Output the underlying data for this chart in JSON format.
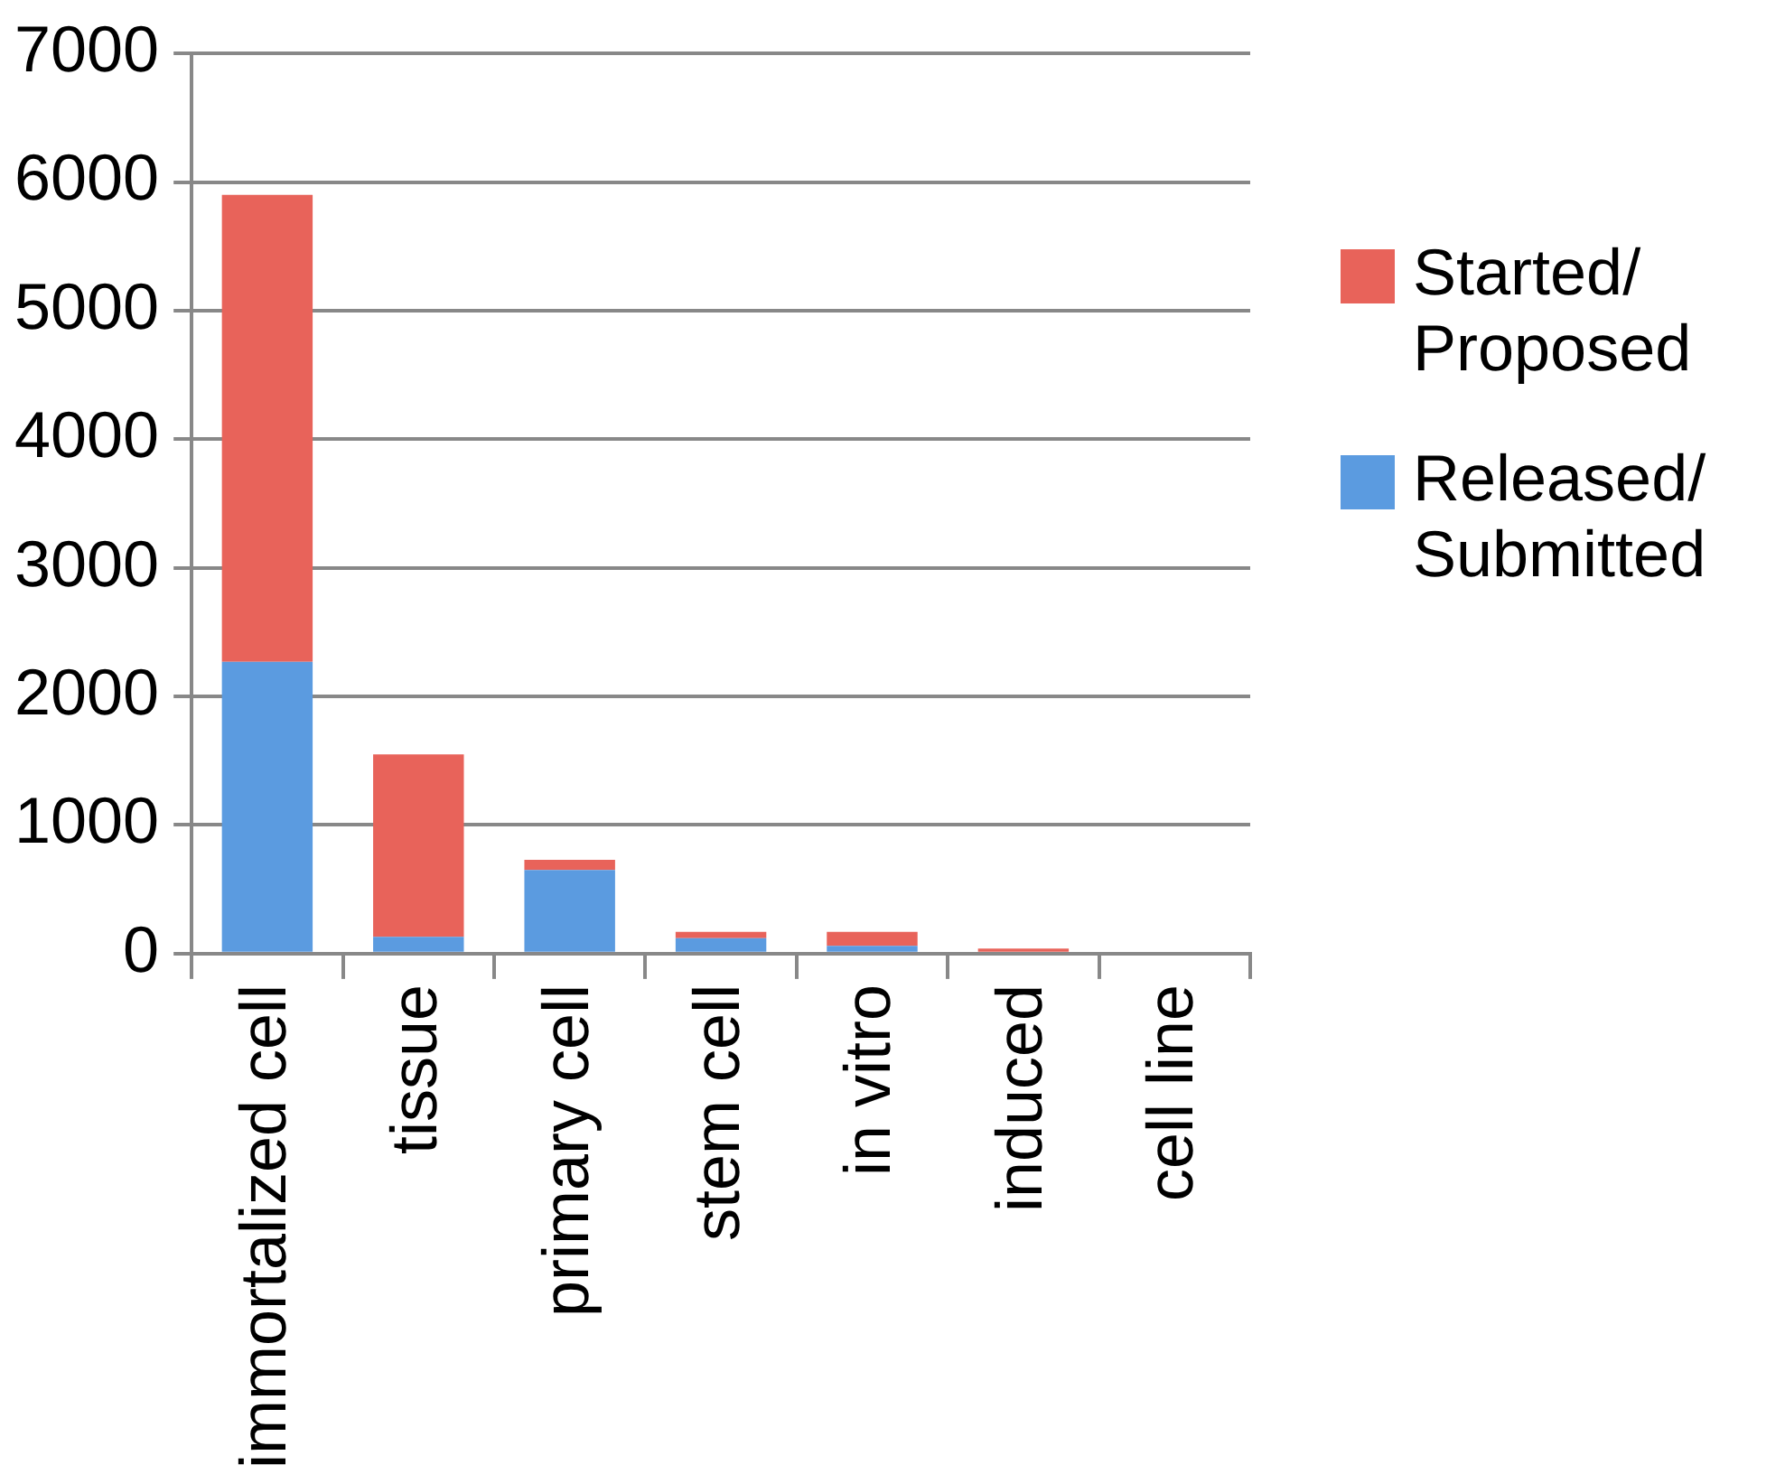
{
  "chart_data": {
    "type": "bar",
    "stacked": true,
    "categories": [
      "immortalized cell",
      "tissue",
      "primary cell",
      "stem cell",
      "in vitro",
      "induced",
      "cell line"
    ],
    "series": [
      {
        "name": "Released/ Submitted",
        "color": "#5b9be0",
        "values": [
          2270,
          130,
          650,
          120,
          60,
          0,
          0
        ]
      },
      {
        "name": "Started/ Proposed",
        "color": "#e8635a",
        "values": [
          3630,
          1420,
          80,
          50,
          110,
          40,
          0
        ]
      }
    ],
    "ylim": [
      0,
      7000
    ],
    "yticks": [
      0,
      1000,
      2000,
      3000,
      4000,
      5000,
      6000,
      7000
    ],
    "grid": "y",
    "legend": "right"
  }
}
